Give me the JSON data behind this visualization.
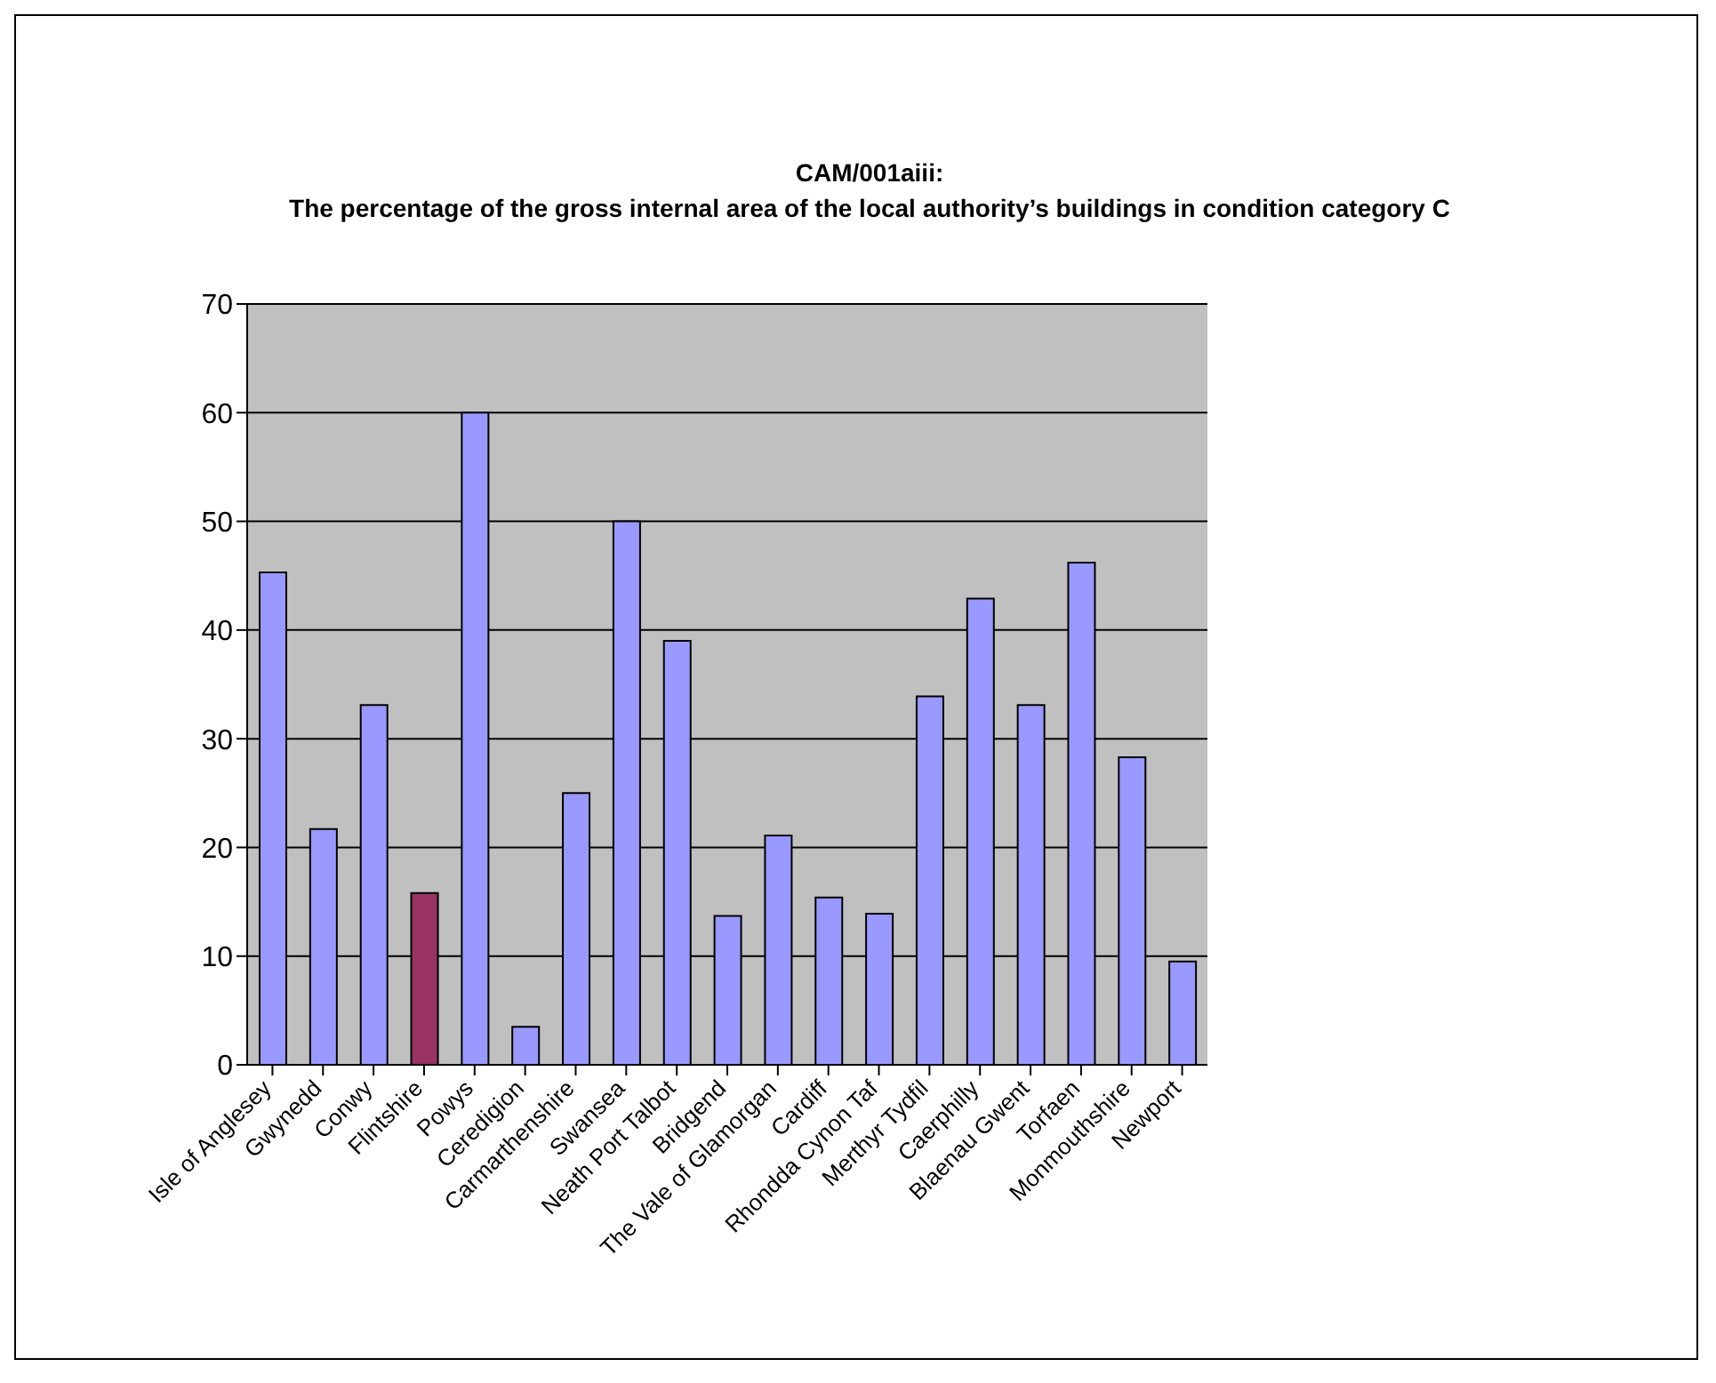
{
  "chart_data": {
    "type": "bar",
    "title": "CAM/001aiii:\nThe percentage of the gross internal area of the local authority’s buildings in condition category C",
    "categories": [
      "Isle of Anglesey",
      "Gwynedd",
      "Conwy",
      "Flintshire",
      "Powys",
      "Ceredigion",
      "Carmarthenshire",
      "Swansea",
      "Neath Port Talbot",
      "Bridgend",
      "The Vale of Glamorgan",
      "Cardiff",
      "Rhondda Cynon Taf",
      "Merthyr Tydfil",
      "Caerphilly",
      "Blaenau Gwent",
      "Torfaen",
      "Monmouthshire",
      "Newport"
    ],
    "values": [
      45.3,
      21.7,
      33.1,
      15.8,
      60,
      3.5,
      25,
      50,
      39,
      13.7,
      21.1,
      15.4,
      13.9,
      33.9,
      42.9,
      33.1,
      46.2,
      28.3,
      9.5
    ],
    "colors": [
      "#9999ff",
      "#9999ff",
      "#9999ff",
      "#993366",
      "#9999ff",
      "#9999ff",
      "#9999ff",
      "#9999ff",
      "#9999ff",
      "#9999ff",
      "#9999ff",
      "#9999ff",
      "#9999ff",
      "#9999ff",
      "#9999ff",
      "#9999ff",
      "#9999ff",
      "#9999ff",
      "#9999ff"
    ],
    "ylim": [
      0,
      70
    ],
    "yticks": [
      0,
      10,
      20,
      30,
      40,
      50,
      60,
      70
    ],
    "grid": "y"
  }
}
